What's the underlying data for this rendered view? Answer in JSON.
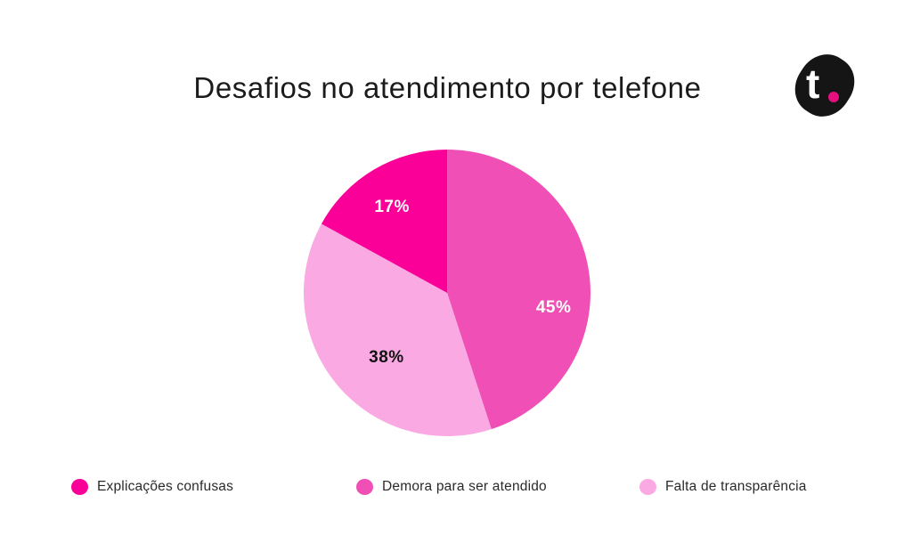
{
  "page": {
    "background": "#FFFFFF"
  },
  "chart_data": {
    "type": "pie",
    "title": "Desafios no atendimento por telefone",
    "start_angle": "12-oclock",
    "direction": "clockwise",
    "legend_position": "bottom",
    "slices": [
      {
        "label": "Demora para ser atendido",
        "value": 45,
        "display": "45%",
        "color": "#F04FB5",
        "label_color": "#FFFFFF"
      },
      {
        "label": "Falta de transparência",
        "value": 38,
        "display": "38%",
        "color": "#FBA9E3",
        "label_color": "#121212"
      },
      {
        "label": "Explicações confusas",
        "value": 17,
        "display": "17%",
        "color": "#FA0098",
        "label_color": "#FFFFFF"
      }
    ]
  },
  "legend": {
    "items": [
      {
        "label": "Explicações confusas",
        "color": "#FA0098"
      },
      {
        "label": "Demora para ser atendido",
        "color": "#F04FB5"
      },
      {
        "label": "Falta de transparência",
        "color": "#FBA9E3"
      }
    ]
  },
  "logo": {
    "letter": "t",
    "dot_color": "#E60F7F",
    "blob_color": "#151515"
  }
}
